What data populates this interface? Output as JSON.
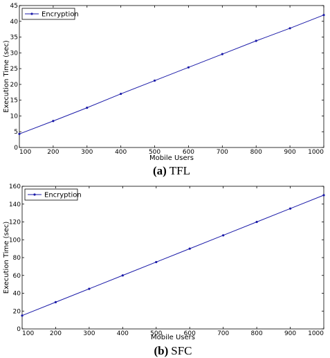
{
  "chart_data": [
    {
      "type": "line",
      "caption_letter": "(a)",
      "caption_name": "TFL",
      "xlabel": "Mobile Users",
      "ylabel": "Execution Time (sec)",
      "xlim": [
        100,
        1000
      ],
      "ylim": [
        0,
        45
      ],
      "x_ticks": [
        100,
        200,
        300,
        400,
        500,
        600,
        700,
        800,
        900,
        1000
      ],
      "y_ticks": [
        0,
        5,
        10,
        15,
        20,
        25,
        30,
        35,
        40,
        45
      ],
      "grid": false,
      "legend_position": "top-left",
      "series": [
        {
          "name": "Encryption",
          "color": "#1a1aa8",
          "x": [
            100,
            200,
            300,
            400,
            500,
            600,
            700,
            800,
            900,
            1000
          ],
          "y": [
            4.3,
            8.4,
            12.6,
            17.0,
            21.2,
            25.4,
            29.6,
            33.8,
            37.8,
            42.0
          ]
        }
      ]
    },
    {
      "type": "line",
      "caption_letter": "(b)",
      "caption_name": "SFC",
      "xlabel": "Mobile Users",
      "ylabel": "Execution Time (sec)",
      "xlim": [
        100,
        1000
      ],
      "ylim": [
        0,
        160
      ],
      "x_ticks": [
        100,
        200,
        300,
        400,
        500,
        600,
        700,
        800,
        900,
        1000
      ],
      "y_ticks": [
        0,
        20,
        40,
        60,
        80,
        100,
        120,
        140,
        160
      ],
      "grid": false,
      "legend_position": "top-left",
      "series": [
        {
          "name": "Encryption",
          "color": "#1a1aa8",
          "x": [
            100,
            200,
            300,
            400,
            500,
            600,
            700,
            800,
            900,
            1000
          ],
          "y": [
            15,
            30,
            45,
            60,
            75,
            90,
            105,
            120,
            135,
            150
          ]
        }
      ]
    }
  ]
}
